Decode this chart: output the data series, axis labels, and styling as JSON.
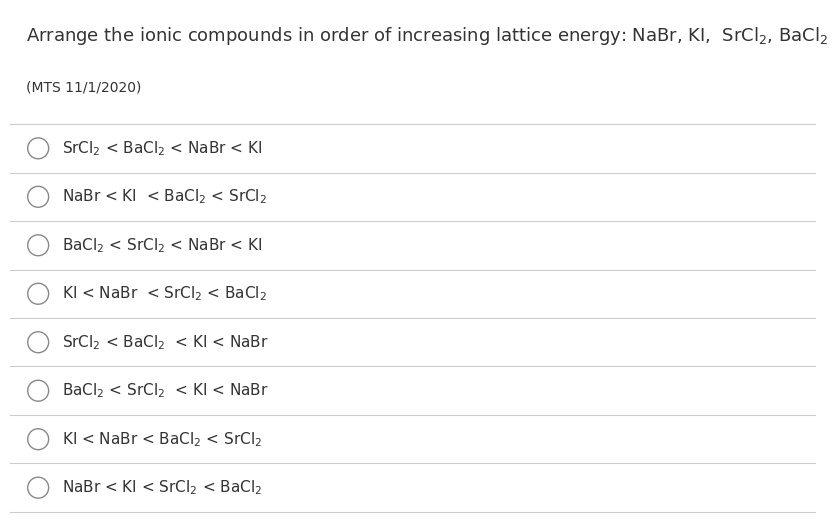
{
  "title": "Arrange the ionic compounds in order of increasing lattice energy: NaBr, KI,  SrCl$_2$, BaCl$_2$",
  "subtitle": "(MTS 11/1/2020)",
  "options": [
    "SrCl$_2$ < BaCl$_2$ < NaBr < KI",
    "NaBr < KI  < BaCl$_2$ < SrCl$_2$",
    "BaCl$_2$ < SrCl$_2$ < NaBr < KI",
    "KI < NaBr  < SrCl$_2$ < BaCl$_2$",
    "SrCl$_2$ < BaCl$_2$  < KI < NaBr",
    "BaCl$_2$ < SrCl$_2$  < KI < NaBr",
    "KI < NaBr < BaCl$_2$ < SrCl$_2$",
    "NaBr < KI < SrCl$_2$ < BaCl$_2$"
  ],
  "bg_color": "#ffffff",
  "text_color": "#333333",
  "line_color": "#cccccc",
  "title_fontsize": 13,
  "subtitle_fontsize": 10,
  "option_fontsize": 11,
  "circle_color": "#888888"
}
